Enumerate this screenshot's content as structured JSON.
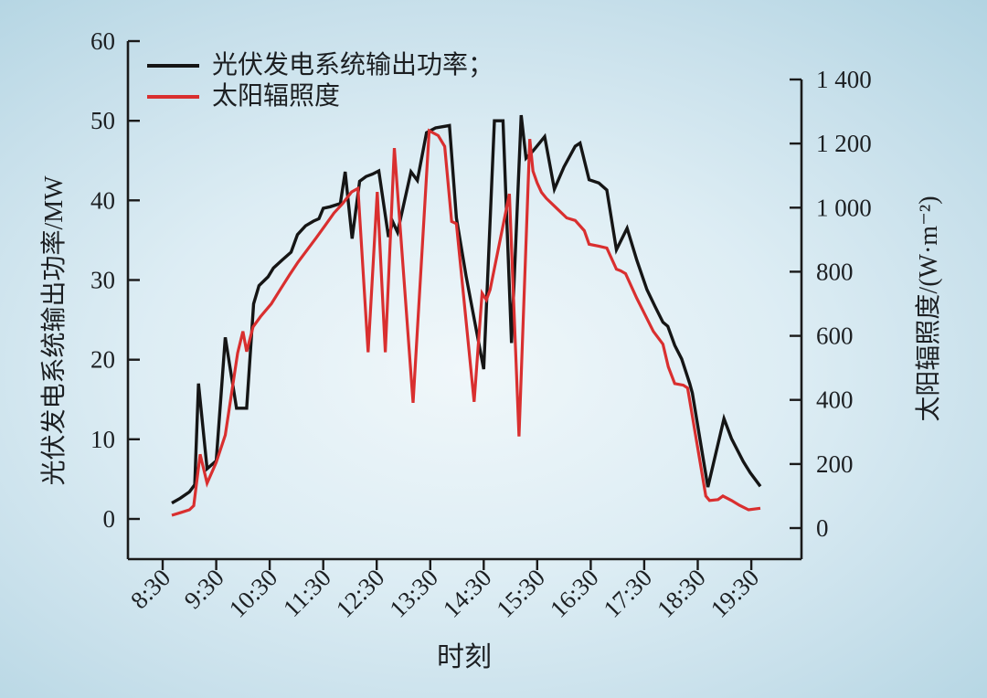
{
  "palette": {
    "bg_center": "#f0f7fa",
    "bg_mid": "#ddedf4",
    "bg_outer": "#c8e0eb",
    "bg_corner": "#b2d4e2",
    "ink": "#1c1f22",
    "axis": "#1a1a1a"
  },
  "chart_data": {
    "type": "line",
    "title": "",
    "xlabel": "时刻",
    "ylabel_left": "光伏发电系统输出功率/MW",
    "ylabel_right": "太阳辐照度/(W·m⁻²)",
    "legend_position": "top-left",
    "grid": false,
    "x_ticks": [
      "8:30",
      "9:30",
      "10:30",
      "11:30",
      "12:30",
      "13:30",
      "14:30",
      "15:30",
      "16:30",
      "17:30",
      "18:30",
      "19:30"
    ],
    "y_left": {
      "min": 0,
      "max": 60,
      "ticks": [
        0,
        10,
        20,
        30,
        40,
        50,
        60
      ],
      "tick_labels": [
        "0",
        "10",
        "20",
        "30",
        "40",
        "50",
        "60"
      ]
    },
    "y_right": {
      "min": 0,
      "max": 1400,
      "ticks": [
        0,
        200,
        400,
        600,
        800,
        1000,
        1200,
        1400
      ],
      "tick_labels": [
        "0",
        "200",
        "400",
        "600",
        "800",
        "1 000",
        "1 200",
        "1 400"
      ]
    },
    "legend": [
      {
        "label": "光伏发电系统输出功率；",
        "color": "#151515"
      },
      {
        "label": "太阳辐照度",
        "color": "#d92f2f"
      }
    ],
    "series": [
      {
        "name": "光伏发电系统输出功率",
        "axis": "left",
        "unit": "MW",
        "color": "#151515",
        "points": [
          [
            8.67,
            2.0
          ],
          [
            8.83,
            2.6
          ],
          [
            9.0,
            3.4
          ],
          [
            9.1,
            4.3
          ],
          [
            9.17,
            17.0
          ],
          [
            9.33,
            6.3
          ],
          [
            9.5,
            7.3
          ],
          [
            9.67,
            22.8
          ],
          [
            9.88,
            13.9
          ],
          [
            10.07,
            13.9
          ],
          [
            10.2,
            27.0
          ],
          [
            10.3,
            29.3
          ],
          [
            10.47,
            30.4
          ],
          [
            10.57,
            31.5
          ],
          [
            10.73,
            32.5
          ],
          [
            10.9,
            33.5
          ],
          [
            11.02,
            35.7
          ],
          [
            11.17,
            36.8
          ],
          [
            11.32,
            37.4
          ],
          [
            11.42,
            37.7
          ],
          [
            11.5,
            39.0
          ],
          [
            11.63,
            39.2
          ],
          [
            11.82,
            39.6
          ],
          [
            11.91,
            43.6
          ],
          [
            12.04,
            35.2
          ],
          [
            12.18,
            42.4
          ],
          [
            12.3,
            43.0
          ],
          [
            12.42,
            43.3
          ],
          [
            12.54,
            43.7
          ],
          [
            12.72,
            35.4
          ],
          [
            12.8,
            37.3
          ],
          [
            12.89,
            36.0
          ],
          [
            13.14,
            43.6
          ],
          [
            13.26,
            42.5
          ],
          [
            13.43,
            48.5
          ],
          [
            13.6,
            49.1
          ],
          [
            13.86,
            49.4
          ],
          [
            13.99,
            37.8
          ],
          [
            14.17,
            30.5
          ],
          [
            14.5,
            18.8
          ],
          [
            14.7,
            50.0
          ],
          [
            14.86,
            50.0
          ],
          [
            15.02,
            22.1
          ],
          [
            15.2,
            50.7
          ],
          [
            15.29,
            45.3
          ],
          [
            15.42,
            46.2
          ],
          [
            15.64,
            48.0
          ],
          [
            15.82,
            41.4
          ],
          [
            16.0,
            44.2
          ],
          [
            16.21,
            46.8
          ],
          [
            16.3,
            47.2
          ],
          [
            16.47,
            42.6
          ],
          [
            16.65,
            42.2
          ],
          [
            16.8,
            41.3
          ],
          [
            16.98,
            33.8
          ],
          [
            17.18,
            36.5
          ],
          [
            17.36,
            32.5
          ],
          [
            17.55,
            28.8
          ],
          [
            17.7,
            26.7
          ],
          [
            17.85,
            24.7
          ],
          [
            17.94,
            24.2
          ],
          [
            18.07,
            21.8
          ],
          [
            18.2,
            20.1
          ],
          [
            18.35,
            17.0
          ],
          [
            18.4,
            15.8
          ],
          [
            18.69,
            4.0
          ],
          [
            18.99,
            12.6
          ],
          [
            19.13,
            10.1
          ],
          [
            19.35,
            7.2
          ],
          [
            19.48,
            5.8
          ],
          [
            19.67,
            4.1
          ]
        ]
      },
      {
        "name": "太阳辐照度",
        "axis": "right",
        "unit": "W·m⁻²",
        "color": "#d92f2f",
        "points": [
          [
            8.67,
            40
          ],
          [
            8.83,
            48
          ],
          [
            9.0,
            57
          ],
          [
            9.08,
            70
          ],
          [
            9.2,
            230
          ],
          [
            9.33,
            140
          ],
          [
            9.5,
            205
          ],
          [
            9.67,
            290
          ],
          [
            9.9,
            546
          ],
          [
            10.0,
            614
          ],
          [
            10.07,
            551
          ],
          [
            10.19,
            628
          ],
          [
            10.33,
            660
          ],
          [
            10.53,
            700
          ],
          [
            10.7,
            745
          ],
          [
            10.87,
            790
          ],
          [
            11.03,
            830
          ],
          [
            11.2,
            868
          ],
          [
            11.37,
            906
          ],
          [
            11.53,
            943
          ],
          [
            11.7,
            983
          ],
          [
            11.87,
            1014
          ],
          [
            12.03,
            1049
          ],
          [
            12.15,
            1060
          ],
          [
            12.34,
            549
          ],
          [
            12.51,
            1049
          ],
          [
            12.66,
            549
          ],
          [
            12.83,
            1186
          ],
          [
            13.18,
            391
          ],
          [
            13.48,
            1240
          ],
          [
            13.65,
            1225
          ],
          [
            13.77,
            1191
          ],
          [
            13.9,
            957
          ],
          [
            13.99,
            950
          ],
          [
            14.32,
            394
          ],
          [
            14.47,
            733
          ],
          [
            14.55,
            712
          ],
          [
            14.62,
            744
          ],
          [
            14.98,
            1043
          ],
          [
            15.16,
            286
          ],
          [
            15.36,
            1214
          ],
          [
            15.42,
            1114
          ],
          [
            15.5,
            1077
          ],
          [
            15.58,
            1048
          ],
          [
            15.67,
            1029
          ],
          [
            15.87,
            997
          ],
          [
            16.05,
            968
          ],
          [
            16.21,
            960
          ],
          [
            16.38,
            928
          ],
          [
            16.47,
            886
          ],
          [
            16.65,
            880
          ],
          [
            16.8,
            874
          ],
          [
            16.98,
            808
          ],
          [
            17.06,
            803
          ],
          [
            17.15,
            794
          ],
          [
            17.36,
            717
          ],
          [
            17.5,
            671
          ],
          [
            17.67,
            614
          ],
          [
            17.85,
            574
          ],
          [
            17.95,
            503
          ],
          [
            18.07,
            451
          ],
          [
            18.23,
            446
          ],
          [
            18.31,
            437
          ],
          [
            18.65,
            100
          ],
          [
            18.72,
            86
          ],
          [
            18.88,
            89
          ],
          [
            18.97,
            100
          ],
          [
            19.13,
            86
          ],
          [
            19.28,
            71
          ],
          [
            19.45,
            57
          ],
          [
            19.67,
            62
          ]
        ]
      }
    ]
  }
}
